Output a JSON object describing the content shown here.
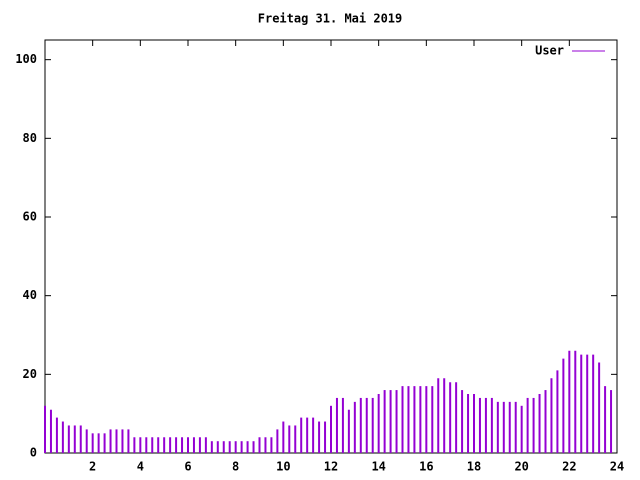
{
  "chart_data": {
    "type": "impulse",
    "title": "Freitag 31. Mai 2019",
    "series": [
      {
        "name": "User",
        "color": "#9400d3",
        "values": [
          12,
          11,
          9,
          8,
          7,
          7,
          7,
          6,
          5,
          5,
          5,
          6,
          6,
          6,
          6,
          4,
          4,
          4,
          4,
          4,
          4,
          4,
          4,
          4,
          4,
          4,
          4,
          4,
          3,
          3,
          3,
          3,
          3,
          3,
          3,
          3,
          4,
          4,
          4,
          6,
          8,
          7,
          7,
          9,
          9,
          9,
          8,
          8,
          12,
          14,
          14,
          11,
          13,
          14,
          14,
          14,
          15,
          16,
          16,
          16,
          17,
          17,
          17,
          17,
          17,
          17,
          19,
          19,
          18,
          18,
          16,
          15,
          15,
          14,
          14,
          14,
          13,
          13,
          13,
          13,
          12,
          14,
          14,
          15,
          16,
          19,
          21,
          24,
          26,
          26,
          25,
          25,
          25,
          23,
          17,
          16
        ]
      }
    ],
    "x": [
      0,
      0.25,
      0.5,
      0.75,
      1,
      1.25,
      1.5,
      1.75,
      2,
      2.25,
      2.5,
      2.75,
      3,
      3.25,
      3.5,
      3.75,
      4,
      4.25,
      4.5,
      4.75,
      5,
      5.25,
      5.5,
      5.75,
      6,
      6.25,
      6.5,
      6.75,
      7,
      7.25,
      7.5,
      7.75,
      8,
      8.25,
      8.5,
      8.75,
      9,
      9.25,
      9.5,
      9.75,
      10,
      10.25,
      10.5,
      10.75,
      11,
      11.25,
      11.5,
      11.75,
      12,
      12.25,
      12.5,
      12.75,
      13,
      13.25,
      13.5,
      13.75,
      14,
      14.25,
      14.5,
      14.75,
      15,
      15.25,
      15.5,
      15.75,
      16,
      16.25,
      16.5,
      16.75,
      17,
      17.25,
      17.5,
      17.75,
      18,
      18.25,
      18.5,
      18.75,
      19,
      19.25,
      19.5,
      19.75,
      20,
      20.25,
      20.5,
      20.75,
      21,
      21.25,
      21.5,
      21.75,
      22,
      22.25,
      22.5,
      22.75,
      23,
      23.25,
      23.5,
      23.75
    ],
    "xlim": [
      0,
      24
    ],
    "xticks": [
      2,
      4,
      6,
      8,
      10,
      12,
      14,
      16,
      18,
      20,
      22,
      24
    ],
    "ylim": [
      0,
      105
    ],
    "yticks": [
      0,
      20,
      40,
      60,
      80,
      100
    ],
    "legend": "top-right"
  }
}
